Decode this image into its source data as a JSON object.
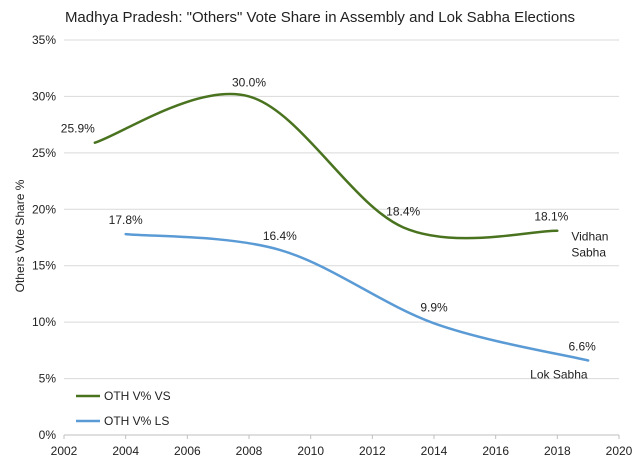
{
  "chart_data": {
    "type": "line",
    "title": "Madhya Pradesh: \"Others\" Vote Share in Assembly and Lok Sabha Elections",
    "xlabel": "",
    "ylabel": "Others Vote Share %",
    "xlim": [
      2002,
      2020
    ],
    "ylim": [
      0,
      35
    ],
    "x_ticks": [
      "2002",
      "2004",
      "2006",
      "2008",
      "2010",
      "2012",
      "2014",
      "2016",
      "2018",
      "2020"
    ],
    "y_ticks": [
      "0%",
      "5%",
      "10%",
      "15%",
      "20%",
      "25%",
      "30%",
      "35%"
    ],
    "grid": "horizontal",
    "legend_position": "bottom-left",
    "series": [
      {
        "name": "OTH V% VS",
        "color": "#4a7320",
        "end_label": [
          "Vidhan",
          "Sabha"
        ],
        "x": [
          2003,
          2008,
          2013,
          2018
        ],
        "values": [
          25.9,
          30.0,
          18.4,
          18.1
        ],
        "labels": [
          "25.9%",
          "30.0%",
          "18.4%",
          "18.1%"
        ]
      },
      {
        "name": "OTH V% LS",
        "color": "#5b9bd5",
        "end_label": [
          "Lok Sabha"
        ],
        "x": [
          2004,
          2009,
          2014,
          2019
        ],
        "values": [
          17.8,
          16.4,
          9.9,
          6.6
        ],
        "labels": [
          "17.8%",
          "16.4%",
          "9.9%",
          "6.6%"
        ]
      }
    ]
  }
}
